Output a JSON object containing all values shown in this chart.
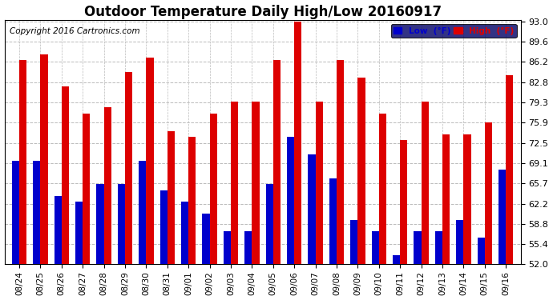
{
  "title": "Outdoor Temperature Daily High/Low 20160917",
  "copyright": "Copyright 2016 Cartronics.com",
  "legend_low": "Low  (°F)",
  "legend_high": "High  (°F)",
  "dates": [
    "08/24",
    "08/25",
    "08/26",
    "08/27",
    "08/28",
    "08/29",
    "08/30",
    "08/31",
    "09/01",
    "09/02",
    "09/03",
    "09/04",
    "09/05",
    "09/06",
    "09/07",
    "09/08",
    "09/09",
    "09/10",
    "09/11",
    "09/12",
    "09/13",
    "09/14",
    "09/15",
    "09/16"
  ],
  "high": [
    86.5,
    87.5,
    82.0,
    77.5,
    78.5,
    84.5,
    87.0,
    74.5,
    73.5,
    77.5,
    79.5,
    79.5,
    86.5,
    93.0,
    79.5,
    86.5,
    83.5,
    77.5,
    73.0,
    79.5,
    74.0,
    74.0,
    76.0,
    84.0
  ],
  "low": [
    69.5,
    69.5,
    63.5,
    62.5,
    65.5,
    65.5,
    69.5,
    64.5,
    62.5,
    60.5,
    57.5,
    57.5,
    65.5,
    73.5,
    70.5,
    66.5,
    59.5,
    57.5,
    53.5,
    57.5,
    57.5,
    59.5,
    56.5,
    68.0
  ],
  "ylim_min": 52.0,
  "ylim_max": 93.0,
  "yticks": [
    52.0,
    55.4,
    58.8,
    62.2,
    65.7,
    69.1,
    72.5,
    75.9,
    79.3,
    82.8,
    86.2,
    89.6,
    93.0
  ],
  "bar_color_low": "#0000cc",
  "bar_color_high": "#dd0000",
  "background_color": "#ffffff",
  "grid_color": "#bbbbbb",
  "title_fontsize": 12,
  "copyright_fontsize": 7.5,
  "tick_fontsize": 8,
  "bar_width": 0.35
}
